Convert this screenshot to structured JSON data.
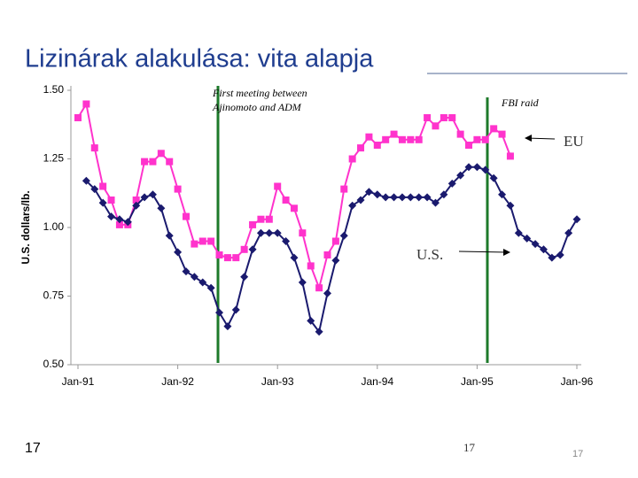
{
  "chart_data": {
    "type": "line",
    "title": "Lizinárak alakulása: vita alapja",
    "y_label": "U.S. dollars/lb.",
    "annotations": [
      "First meeting between",
      "Ajinomoto and ADM",
      "FBI raid",
      "EU",
      "U.S."
    ],
    "page_numbers": [
      "17",
      "17",
      "17"
    ],
    "x": [
      0,
      1,
      2,
      3,
      4,
      5,
      6,
      7,
      8,
      9,
      10,
      11,
      12,
      13,
      14,
      15,
      16,
      17,
      18,
      19,
      20,
      21,
      22,
      23,
      24,
      25,
      26,
      27,
      28,
      29,
      30,
      31,
      32,
      33,
      34,
      35,
      36,
      37,
      38,
      39,
      40,
      41,
      42,
      43,
      44,
      45,
      46,
      47,
      48,
      49,
      50,
      51,
      52,
      53,
      54,
      55,
      56,
      57,
      58,
      59,
      60
    ],
    "series": [
      {
        "name": "EU",
        "color": "#ff33cc",
        "marker": "square",
        "values": [
          1.4,
          1.45,
          1.29,
          1.15,
          1.1,
          1.01,
          1.01,
          1.1,
          1.24,
          1.24,
          1.27,
          1.24,
          1.14,
          1.04,
          0.94,
          0.95,
          0.95,
          0.9,
          0.89,
          0.89,
          0.92,
          1.01,
          1.03,
          1.03,
          1.15,
          1.1,
          1.07,
          0.98,
          0.86,
          0.78,
          0.9,
          0.95,
          1.14,
          1.25,
          1.29,
          1.33,
          1.3,
          1.32,
          1.34,
          1.32,
          1.32,
          1.32,
          1.4,
          1.37,
          1.4,
          1.4,
          1.34,
          1.3,
          1.32,
          1.32,
          1.36,
          1.34,
          1.26,
          null,
          null,
          null,
          null,
          null,
          null,
          null,
          null
        ]
      },
      {
        "name": "U.S.",
        "color": "#1a1a6e",
        "marker": "diamond",
        "values": [
          null,
          1.17,
          1.14,
          1.09,
          1.04,
          1.03,
          1.02,
          1.08,
          1.11,
          1.12,
          1.07,
          0.97,
          0.91,
          0.84,
          0.82,
          0.8,
          0.78,
          0.69,
          0.64,
          0.7,
          0.82,
          0.92,
          0.98,
          0.98,
          0.98,
          0.95,
          0.89,
          0.8,
          0.66,
          0.62,
          0.76,
          0.88,
          0.97,
          1.08,
          1.1,
          1.13,
          1.12,
          1.11,
          1.11,
          1.11,
          1.11,
          1.11,
          1.11,
          1.09,
          1.12,
          1.16,
          1.19,
          1.22,
          1.22,
          1.21,
          1.18,
          1.12,
          1.08,
          0.98,
          0.96,
          0.94,
          0.92,
          0.89,
          0.9,
          0.98,
          1.03
        ]
      }
    ],
    "xlim": [
      0,
      60
    ],
    "xticks": [
      {
        "value": 0,
        "label": "Jan-91"
      },
      {
        "value": 12,
        "label": "Jan-92"
      },
      {
        "value": 24,
        "label": "Jan-93"
      },
      {
        "value": 36,
        "label": "Jan-94"
      },
      {
        "value": 48,
        "label": "Jan-95"
      },
      {
        "value": 60,
        "label": "Jan-96"
      }
    ],
    "ylim": [
      0.5,
      1.5
    ],
    "yticks": [
      {
        "value": 0.5,
        "label": "0.50"
      },
      0.75,
      {
        "value": 1,
        "label": "1.00"
      },
      1.25,
      {
        "value": 1.5,
        "label": "1.50"
      }
    ],
    "grid": false
  }
}
